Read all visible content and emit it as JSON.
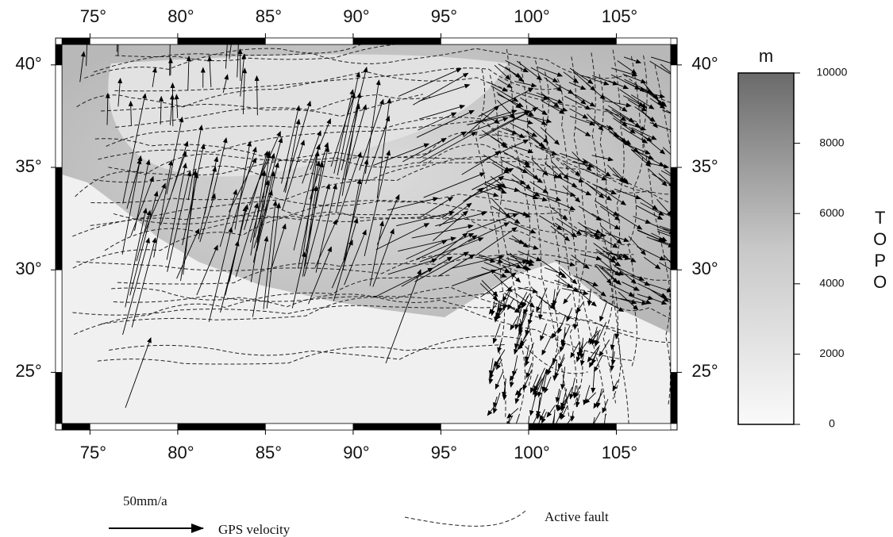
{
  "map": {
    "lon_range": [
      73.4,
      108.1
    ],
    "lat_range": [
      22.5,
      41
    ],
    "lon_ticks": [
      {
        "value": 75,
        "label": "75°"
      },
      {
        "value": 80,
        "label": "80°"
      },
      {
        "value": 85,
        "label": "85°"
      },
      {
        "value": 90,
        "label": "90°"
      },
      {
        "value": 95,
        "label": "95°"
      },
      {
        "value": 100,
        "label": "100°"
      },
      {
        "value": 105,
        "label": "105°"
      }
    ],
    "lat_ticks": [
      {
        "value": 25,
        "label": "25°"
      },
      {
        "value": 30,
        "label": "30°"
      },
      {
        "value": 35,
        "label": "35°"
      },
      {
        "value": 40,
        "label": "40°"
      }
    ]
  },
  "colorbar": {
    "unit": "m",
    "label": "TOPO",
    "range": [
      0,
      10000
    ],
    "ticks": [
      0,
      2000,
      4000,
      6000,
      8000,
      10000
    ]
  },
  "legend": {
    "scale": "50mm/a",
    "gps": "GPS velocity",
    "fault": "Active fault"
  }
}
